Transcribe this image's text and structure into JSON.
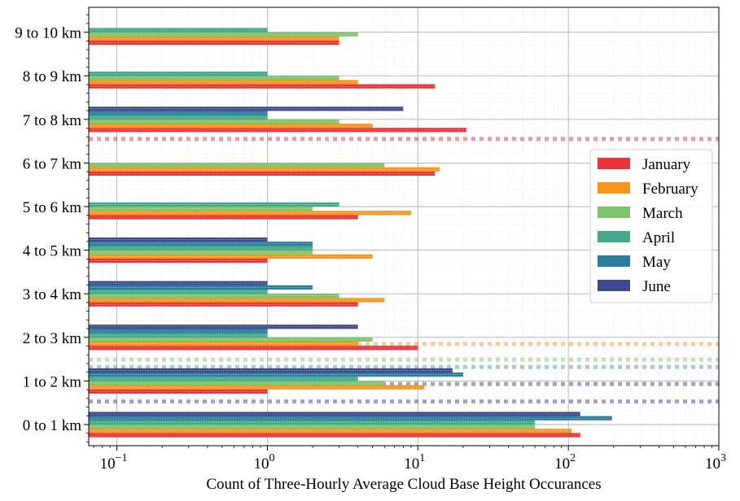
{
  "chart_data": {
    "type": "bar",
    "orientation": "horizontal",
    "xscale": "log",
    "xlim": [
      0.065,
      1000
    ],
    "xlabel": "Count of Three-Hourly Average Cloud Base Height Occurances",
    "ylabel": "",
    "grid": true,
    "legend_position": "right",
    "categories": [
      "0 to 1 km",
      "1 to 2 km",
      "2 to 3 km",
      "3 to 4 km",
      "4 to 5 km",
      "5 to 6 km",
      "6 to 7 km",
      "7 to 8 km",
      "8 to 9 km",
      "9 to 10 km"
    ],
    "x_ticks": [
      {
        "value": 0.1,
        "base": "10",
        "exp": "−1"
      },
      {
        "value": 1,
        "base": "10",
        "exp": "0"
      },
      {
        "value": 10,
        "base": "10",
        "exp": "1"
      },
      {
        "value": 100,
        "base": "10",
        "exp": "2"
      },
      {
        "value": 1000,
        "base": "10",
        "exp": "3"
      }
    ],
    "series": [
      {
        "name": "January",
        "color": "#e8343a",
        "values": [
          120,
          1,
          10,
          4,
          1,
          4,
          13,
          21,
          13,
          3
        ]
      },
      {
        "name": "February",
        "color": "#f5961e",
        "values": [
          105,
          11,
          4,
          6,
          5,
          9,
          14,
          5,
          4,
          3
        ]
      },
      {
        "name": "March",
        "color": "#7ec46d",
        "values": [
          60,
          6,
          5,
          3,
          2,
          2,
          6,
          3,
          3,
          4
        ]
      },
      {
        "name": "April",
        "color": "#43a98a",
        "values": [
          60,
          4,
          1,
          1,
          2,
          3,
          null,
          1,
          1,
          1
        ]
      },
      {
        "name": "May",
        "color": "#2a7d9c",
        "values": [
          195,
          20,
          1,
          2,
          2,
          null,
          null,
          1,
          null,
          null
        ]
      },
      {
        "name": "June",
        "color": "#3d4a8c",
        "values": [
          120,
          17,
          4,
          1,
          1,
          null,
          null,
          8,
          null,
          null
        ]
      }
    ],
    "reference_lines": [
      {
        "color": "#e8343a",
        "y": 6.55
      },
      {
        "color": "#f5961e",
        "y": 1.85
      },
      {
        "color": "#7ec46d",
        "y": 1.49
      },
      {
        "color": "#43a98a",
        "y": 1.32
      },
      {
        "color": "#3d4a8c",
        "y": 0.93
      },
      {
        "color": "#3d4a8c",
        "y": 0.53
      }
    ]
  }
}
